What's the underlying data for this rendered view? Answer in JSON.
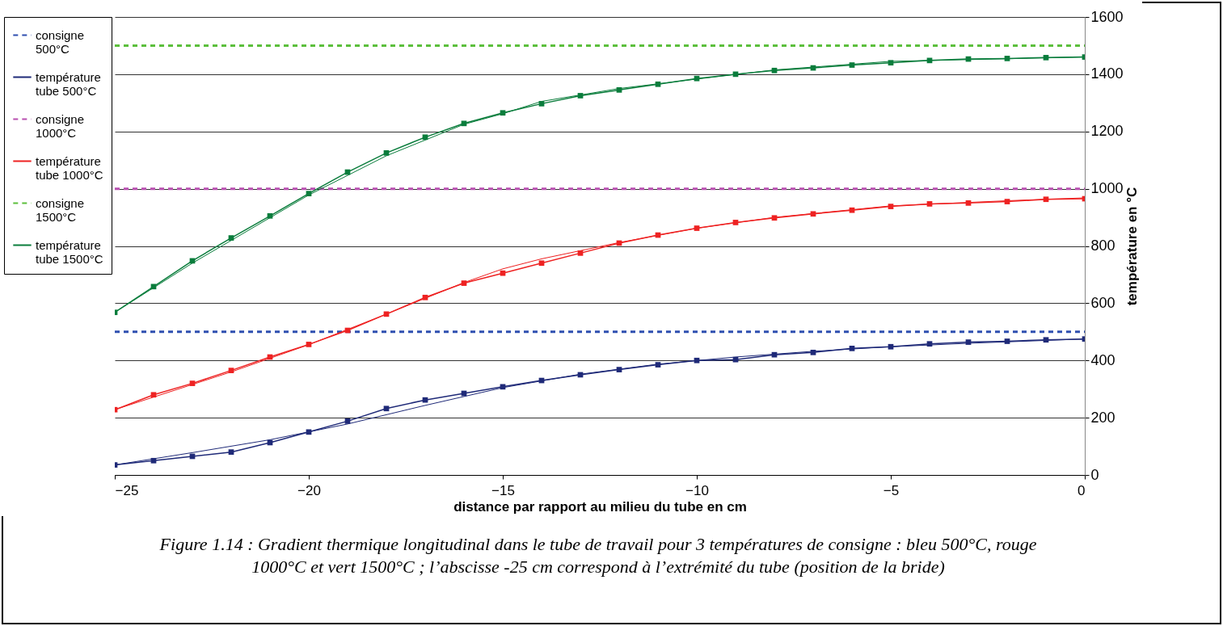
{
  "chart_data": {
    "type": "line",
    "xlabel": "distance par rapport au milieu du tube en cm",
    "ylabel": "température en °C",
    "annotations": [
      "Figure 1.14 : Gradient thermique longitudinal dans le tube de travail pour 3 températures de consigne : bleu 500°C, rouge 1000°C et vert 1500°C ; l’abscisse -25 cm correspond à l’extrémité du tube (position de la bride)"
    ],
    "xlim": [
      -25,
      0
    ],
    "xticks": [
      -25,
      -20,
      -15,
      -10,
      -5,
      0
    ],
    "ylim": [
      0,
      1600
    ],
    "yticks": [
      0,
      200,
      400,
      600,
      800,
      1000,
      1200,
      1400,
      1600
    ],
    "grid": "y",
    "legend": "left",
    "marker": "square",
    "line_style": "solid",
    "series": [
      {
        "name": "consigne 500°C",
        "color": "#2f4fb0",
        "line_style": "dashed",
        "marker": "none",
        "x": [
          -25,
          0
        ],
        "values": [
          500,
          500
        ]
      },
      {
        "name": "température tube 500°C",
        "color": "#1f2a78",
        "x": [
          -25,
          -24,
          -23,
          -22,
          -21,
          -20,
          -19,
          -18,
          -17,
          -16,
          -15,
          -14,
          -13,
          -12,
          -11,
          -10,
          -9,
          -8,
          -7,
          -6,
          -5,
          -4,
          -3,
          -2,
          -1,
          0
        ],
        "values": [
          35,
          50,
          65,
          80,
          113,
          150,
          188,
          232,
          262,
          285,
          308,
          330,
          350,
          368,
          385,
          400,
          403,
          420,
          428,
          442,
          448,
          458,
          464,
          467,
          472,
          475
        ]
      },
      {
        "name": "consigne 1000°C",
        "color": "#b84fb0",
        "line_style": "dashed",
        "marker": "none",
        "x": [
          -25,
          0
        ],
        "values": [
          1000,
          1000
        ]
      },
      {
        "name": "température tube 1000°C",
        "color": "#ee2222",
        "x": [
          -25,
          -24,
          -23,
          -22,
          -21,
          -20,
          -19,
          -18,
          -17,
          -16,
          -15,
          -14,
          -13,
          -12,
          -11,
          -10,
          -9,
          -8,
          -7,
          -6,
          -5,
          -4,
          -3,
          -2,
          -1,
          0
        ],
        "values": [
          228,
          280,
          320,
          365,
          412,
          456,
          505,
          562,
          620,
          670,
          705,
          740,
          775,
          810,
          838,
          862,
          882,
          898,
          912,
          925,
          938,
          947,
          950,
          955,
          963,
          965
        ]
      },
      {
        "name": "consigne 1500°C",
        "color": "#5cbf3c",
        "line_style": "dashed",
        "marker": "none",
        "x": [
          -25,
          0
        ],
        "values": [
          1500,
          1500
        ]
      },
      {
        "name": "température tube 1500°C",
        "color": "#0a7d3c",
        "x": [
          -25,
          -24,
          -23,
          -22,
          -21,
          -20,
          -19,
          -18,
          -17,
          -16,
          -15,
          -14,
          -13,
          -12,
          -11,
          -10,
          -9,
          -8,
          -7,
          -6,
          -5,
          -4,
          -3,
          -2,
          -1,
          0
        ],
        "values": [
          568,
          658,
          748,
          828,
          905,
          983,
          1058,
          1125,
          1180,
          1228,
          1265,
          1297,
          1325,
          1345,
          1365,
          1385,
          1400,
          1413,
          1422,
          1432,
          1440,
          1448,
          1453,
          1455,
          1458,
          1460
        ]
      },
      {
        "color": "#1f2a78",
        "marker": "none",
        "x": [
          -25,
          -23,
          -21,
          -19,
          -17,
          -15,
          -13,
          -11,
          -9,
          -7,
          -5,
          -3,
          0
        ],
        "values": [
          35,
          78,
          123,
          178,
          243,
          305,
          352,
          387,
          412,
          432,
          448,
          460,
          475
        ]
      },
      {
        "color": "#ee2222",
        "marker": "none",
        "x": [
          -25,
          -22,
          -20,
          -18,
          -16,
          -15,
          -14,
          -12,
          -10,
          -8,
          -5,
          -2,
          0
        ],
        "values": [
          228,
          360,
          455,
          562,
          672,
          720,
          755,
          812,
          862,
          900,
          940,
          958,
          968
        ]
      },
      {
        "color": "#0a7d3c",
        "marker": "none",
        "x": [
          -25,
          -23,
          -20,
          -18,
          -16,
          -15,
          -14,
          -12,
          -10,
          -8,
          -5,
          0
        ],
        "values": [
          568,
          740,
          978,
          1115,
          1225,
          1262,
          1305,
          1350,
          1383,
          1415,
          1445,
          1460
        ]
      }
    ]
  }
}
